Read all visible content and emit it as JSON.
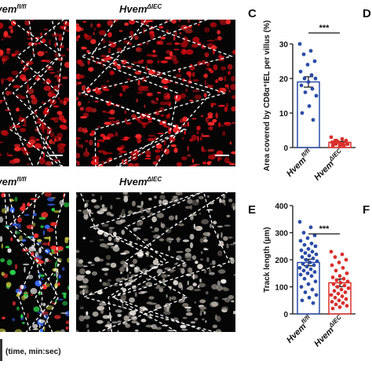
{
  "micrograph_labels": [
    {
      "name": "Hvem",
      "sup": "fl/fl"
    },
    {
      "name": "Hvem",
      "sup": "ΔIEC"
    },
    {
      "name": "Hvem",
      "sup": "fl/fl"
    },
    {
      "name": "Hvem",
      "sup": "ΔIEC"
    }
  ],
  "time_label": "(time, min:sec)",
  "cropped_panel_letters": [
    "D",
    "F"
  ],
  "chart_data": [
    {
      "type": "bar",
      "panel_letter": "C",
      "ylabel": "Area covered by CD8α⁺IEL per villus (%)",
      "categories": [
        "Hvem",
        "Hvem"
      ],
      "category_superscripts": [
        "fl/fl",
        "ΔIEC"
      ],
      "values": [
        19,
        1.5
      ],
      "errors": [
        1.5,
        0.3
      ],
      "points": [
        [
          30,
          28,
          27,
          25,
          24,
          22,
          21,
          20,
          20,
          19,
          18,
          17,
          16,
          15,
          12,
          10,
          8
        ],
        [
          3,
          2.5,
          2,
          2,
          1.5,
          1.5,
          1,
          1,
          1,
          0.5,
          0.5,
          0.5,
          2,
          1,
          0.8,
          1.2
        ]
      ],
      "colors": [
        "#2a4da6",
        "#d9302c"
      ],
      "ylim": [
        0,
        30
      ],
      "yticks": [
        0,
        10,
        20,
        30
      ],
      "significance": "***"
    },
    {
      "type": "bar",
      "panel_letter": "E",
      "ylabel": "Track length (μm)",
      "categories": [
        "Hvem",
        "Hvem"
      ],
      "category_superscripts": [
        "fl/fl",
        "ΔIEC"
      ],
      "values": [
        190,
        115
      ],
      "errors": [
        12,
        14
      ],
      "points": [
        [
          340,
          320,
          300,
          290,
          280,
          270,
          260,
          255,
          250,
          240,
          235,
          230,
          225,
          220,
          215,
          210,
          205,
          200,
          195,
          190,
          185,
          180,
          175,
          170,
          165,
          160,
          155,
          150,
          145,
          140,
          130,
          120,
          110,
          100,
          90,
          80,
          70,
          60,
          50,
          40
        ],
        [
          230,
          220,
          210,
          200,
          190,
          180,
          170,
          160,
          150,
          140,
          135,
          130,
          125,
          120,
          115,
          110,
          105,
          100,
          95,
          90,
          85,
          80,
          75,
          70,
          65,
          60,
          55,
          50,
          45,
          40,
          35,
          30,
          25,
          20
        ]
      ],
      "colors": [
        "#2a4da6",
        "#d9302c"
      ],
      "ylim": [
        0,
        400
      ],
      "yticks": [
        0,
        100,
        200,
        300,
        400
      ],
      "significance": "***"
    }
  ]
}
